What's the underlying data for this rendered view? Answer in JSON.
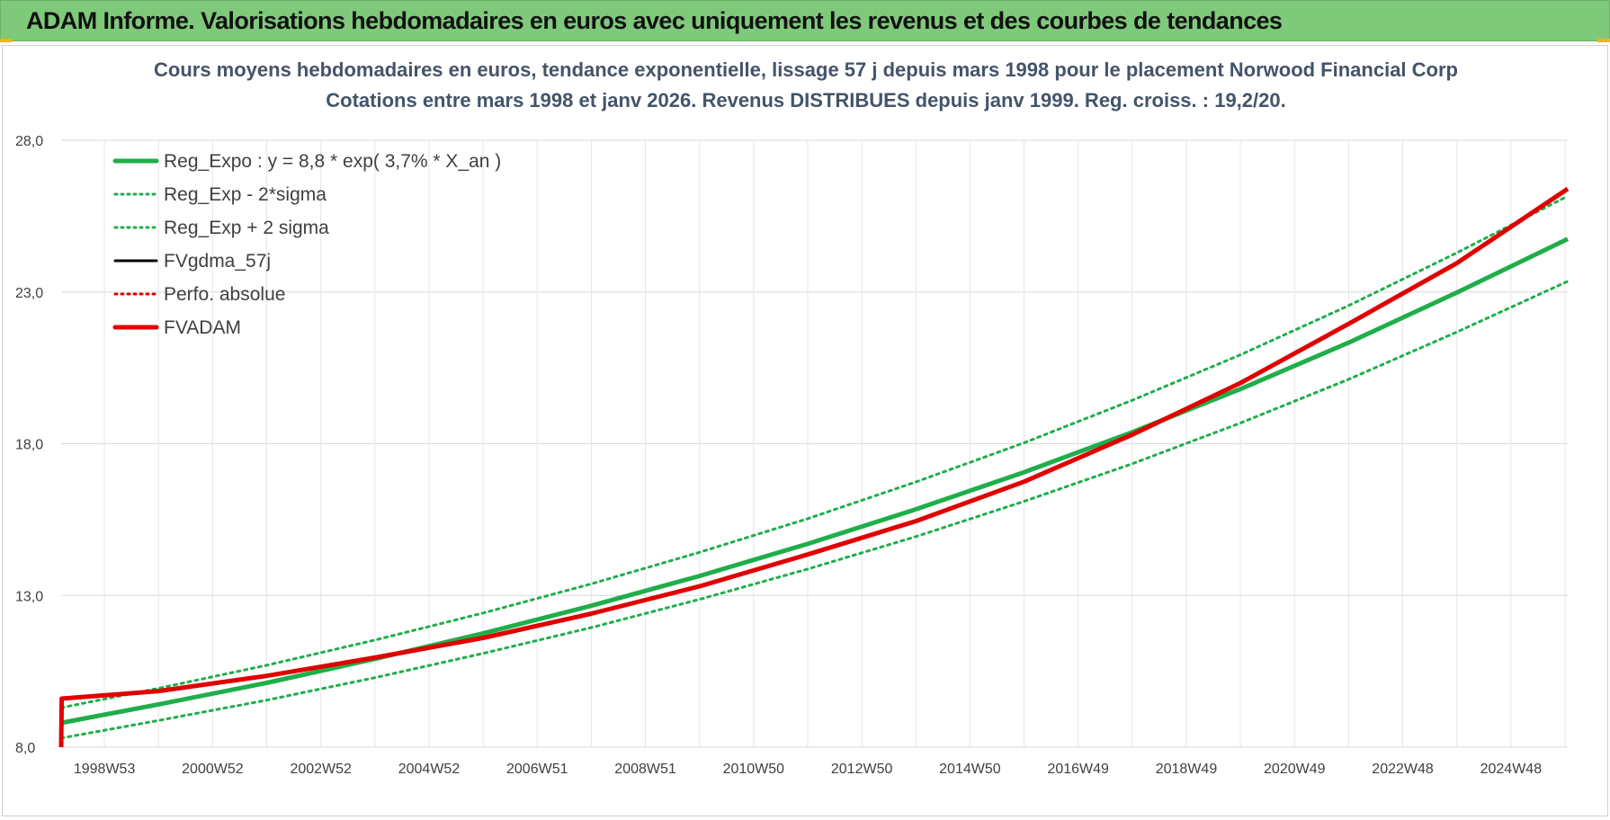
{
  "banner": {
    "title": "ADAM Informe. Valorisations hebdomadaires en euros avec uniquement les revenus et des courbes de tendances"
  },
  "colors": {
    "banner_bg": "#7fc97a",
    "reg_expo": "#1fae4a",
    "sigma_bands": "#1fae4a",
    "fvgdma": "#000000",
    "perfo": "#e00000",
    "fvadam": "#e00000",
    "grid": "#d9d9d9"
  },
  "chart_data": {
    "type": "line",
    "title_lines": [
      "Cours moyens hebdomadaires en euros, tendance exponentielle, lissage 57 j depuis mars 1998 pour le placement Norwood Financial Corp",
      "Cotations entre mars 1998 et janv 2026. Revenus DISTRIBUES depuis janv 1999. Reg. croiss. : 19,2/20."
    ],
    "y_ticks": [
      "8,0",
      "13,0",
      "18,0",
      "23,0",
      "28,0"
    ],
    "ylim": [
      8,
      28
    ],
    "x_tick_labels": [
      "1998W53",
      "2000W52",
      "2002W52",
      "2004W52",
      "2006W51",
      "2008W51",
      "2010W50",
      "2012W50",
      "2014W50",
      "2016W49",
      "2018W49",
      "2020W49",
      "2022W48",
      "2024W48"
    ],
    "x_tick_years": [
      1999.0,
      2001.0,
      2003.0,
      2005.0,
      2007.0,
      2009.0,
      2011.0,
      2013.0,
      2015.0,
      2017.0,
      2019.0,
      2021.0,
      2023.0,
      2025.0
    ],
    "xlim": [
      1998.2,
      2026.05
    ],
    "grid": true,
    "legend_position": "top-left",
    "legend": [
      {
        "label": "Reg_Expo : y = 8,8 * exp( 3,7% *  X_an )",
        "style": "solid-thick",
        "color": "#1fae4a"
      },
      {
        "label": "Reg_Exp - 2*sigma",
        "style": "dotted",
        "color": "#1fae4a"
      },
      {
        "label": "Reg_Exp + 2 sigma",
        "style": "dotted",
        "color": "#1fae4a"
      },
      {
        "label": "FVgdma_57j",
        "style": "solid",
        "color": "#000000"
      },
      {
        "label": "Perfo. absolue",
        "style": "dotted",
        "color": "#e00000"
      },
      {
        "label": "FVADAM",
        "style": "solid-thick",
        "color": "#e00000"
      }
    ],
    "series": [
      {
        "name": "Reg_Expo : y = 8,8 * exp( 3,7% *  X_an )",
        "x": [
          1998.2,
          2000,
          2002,
          2004,
          2006,
          2008,
          2010,
          2012,
          2014,
          2016,
          2018,
          2020,
          2022,
          2024,
          2026.05
        ],
        "values": [
          8.8,
          9.41,
          10.12,
          10.91,
          11.75,
          12.66,
          13.64,
          14.7,
          15.84,
          17.06,
          18.38,
          19.8,
          21.33,
          22.98,
          24.75
        ]
      },
      {
        "name": "Reg_Exp - 2*sigma",
        "x": [
          1998.2,
          2000,
          2002,
          2004,
          2006,
          2008,
          2010,
          2012,
          2014,
          2016,
          2018,
          2020,
          2022,
          2024,
          2026.05
        ],
        "values": [
          8.3,
          8.88,
          9.55,
          10.29,
          11.09,
          11.94,
          12.87,
          13.87,
          14.94,
          16.1,
          17.34,
          18.68,
          20.12,
          21.68,
          23.35
        ]
      },
      {
        "name": "Reg_Exp + 2 sigma",
        "x": [
          1998.2,
          2000,
          2002,
          2004,
          2006,
          2008,
          2010,
          2012,
          2014,
          2016,
          2018,
          2020,
          2022,
          2024,
          2026.05
        ],
        "values": [
          9.3,
          9.94,
          10.7,
          11.53,
          12.42,
          13.38,
          14.42,
          15.53,
          16.74,
          18.03,
          19.43,
          20.93,
          22.55,
          24.29,
          26.16
        ]
      },
      {
        "name": "FVADAM",
        "x": [
          1998.2,
          1998.21,
          2000,
          2002,
          2004,
          2006,
          2008,
          2010,
          2012,
          2014,
          2016,
          2018,
          2020,
          2022,
          2024,
          2026.05
        ],
        "values": [
          8.0,
          9.6,
          9.85,
          10.35,
          10.95,
          11.6,
          12.4,
          13.3,
          14.35,
          15.45,
          16.75,
          18.3,
          20.0,
          21.95,
          23.95,
          26.4
        ]
      }
    ]
  }
}
